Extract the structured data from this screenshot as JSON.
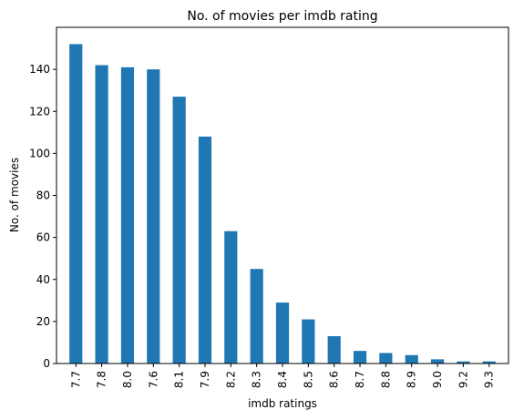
{
  "chart_data": {
    "type": "bar",
    "title": "No. of movies per imdb rating",
    "xlabel": "imdb ratings",
    "ylabel": "No. of movies",
    "categories": [
      "7.7",
      "7.8",
      "8.0",
      "7.6",
      "8.1",
      "7.9",
      "8.2",
      "8.3",
      "8.4",
      "8.5",
      "8.6",
      "8.7",
      "8.8",
      "8.9",
      "9.0",
      "9.2",
      "9.3"
    ],
    "values": [
      152,
      142,
      141,
      140,
      127,
      108,
      63,
      45,
      29,
      21,
      13,
      6,
      5,
      4,
      2,
      1,
      1
    ],
    "ylim": [
      0,
      160
    ],
    "yticks": [
      0,
      20,
      40,
      60,
      80,
      100,
      120,
      140
    ],
    "bar_color": "#1f77b4",
    "grid": false,
    "legend": false
  }
}
